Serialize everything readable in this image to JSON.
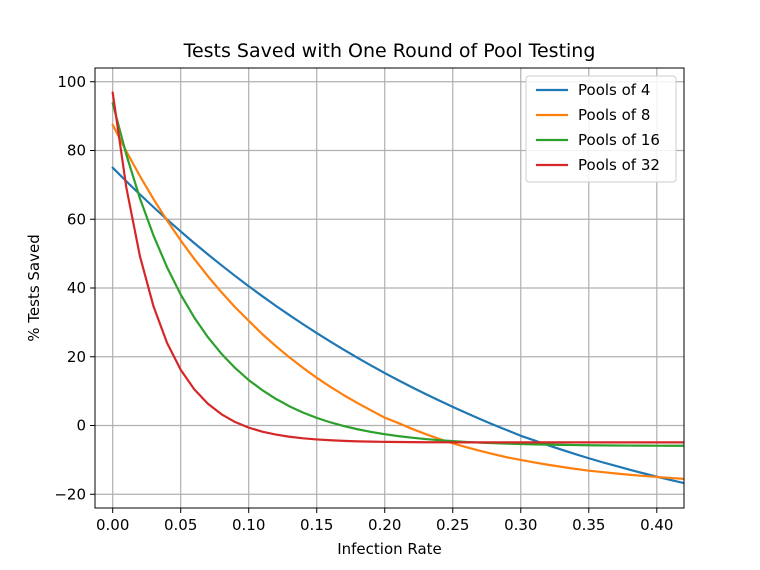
{
  "chart_data": {
    "type": "line",
    "title": "Tests Saved with One Round of Pool Testing",
    "xlabel": "Infection Rate",
    "ylabel": "% Tests Saved",
    "xlim": [
      -0.013,
      0.42
    ],
    "ylim": [
      -24,
      104
    ],
    "xticks": [
      0.0,
      0.05,
      0.1,
      0.15,
      0.2,
      0.25,
      0.3,
      0.35,
      0.4
    ],
    "xtick_labels": [
      "0.00",
      "0.05",
      "0.10",
      "0.15",
      "0.20",
      "0.25",
      "0.30",
      "0.35",
      "0.40"
    ],
    "yticks": [
      -20,
      0,
      20,
      40,
      60,
      80,
      100
    ],
    "ytick_labels": [
      "−20",
      "0",
      "20",
      "40",
      "60",
      "80",
      "100"
    ],
    "grid": true,
    "legend_position": "top-right",
    "x": [
      0.0,
      0.01,
      0.02,
      0.03,
      0.04,
      0.05,
      0.06,
      0.07,
      0.08,
      0.09,
      0.1,
      0.11,
      0.12,
      0.13,
      0.14,
      0.15,
      0.16,
      0.17,
      0.18,
      0.19,
      0.2,
      0.21,
      0.22,
      0.23,
      0.24,
      0.25,
      0.26,
      0.27,
      0.28,
      0.29,
      0.3,
      0.31,
      0.32,
      0.33,
      0.34,
      0.35,
      0.36,
      0.37,
      0.38,
      0.39,
      0.4,
      0.41,
      0.42
    ],
    "series": [
      {
        "name": "Pools of 4",
        "color": "#1f77b4",
        "values": [
          75.0,
          71.06,
          67.24,
          63.53,
          59.92,
          56.45,
          53.06,
          49.78,
          46.6,
          43.51,
          40.52,
          37.62,
          34.81,
          32.09,
          29.45,
          26.89,
          24.42,
          22.02,
          19.7,
          17.45,
          15.26,
          13.17,
          11.14,
          9.17,
          7.26,
          5.41,
          3.63,
          1.9,
          0.23,
          -1.37,
          -2.99,
          -4.34,
          -5.74,
          -7.03,
          -8.3,
          -9.53,
          -10.69,
          -11.78,
          -12.85,
          -13.89,
          -14.88,
          -15.84,
          -16.75
        ]
      },
      {
        "name": "Pools of 8",
        "color": "#ff7f0e",
        "values": [
          87.5,
          79.77,
          72.58,
          65.88,
          59.64,
          53.84,
          48.45,
          43.42,
          38.75,
          34.41,
          30.47,
          26.58,
          23.07,
          19.8,
          16.75,
          13.9,
          11.25,
          8.8,
          6.52,
          4.39,
          2.28,
          0.71,
          -0.96,
          -2.49,
          -3.91,
          -5.18,
          -6.3,
          -7.37,
          -8.35,
          -9.27,
          -10.01,
          -10.75,
          -11.42,
          -12.04,
          -12.62,
          -13.15,
          -13.55,
          -13.96,
          -14.33,
          -14.67,
          -14.97,
          -15.26,
          -15.52
        ]
      },
      {
        "name": "Pools of 16",
        "color": "#2ca02c",
        "values": [
          93.75,
          78.84,
          66.11,
          55.27,
          46.01,
          38.09,
          31.39,
          25.68,
          20.84,
          16.73,
          13.21,
          10.28,
          7.74,
          5.58,
          3.74,
          2.22,
          0.91,
          -0.17,
          -1.09,
          -1.87,
          -2.53,
          -3.09,
          -3.55,
          -3.95,
          -4.28,
          -4.55,
          -4.78,
          -4.98,
          -5.14,
          -5.28,
          -5.39,
          -5.49,
          -5.57,
          -5.63,
          -5.69,
          -5.74,
          -5.78,
          -5.81,
          -5.84,
          -5.86,
          -5.88,
          -5.89,
          -5.9
        ]
      },
      {
        "name": "Pools of 32",
        "color": "#d62728",
        "values": [
          96.88,
          69.3,
          49.29,
          34.68,
          24.01,
          16.22,
          10.5,
          6.33,
          3.26,
          1.01,
          -0.62,
          -1.79,
          -2.64,
          -3.27,
          -3.72,
          -4.05,
          -4.3,
          -4.48,
          -4.61,
          -4.7,
          -4.76,
          -4.81,
          -4.84,
          -4.87,
          -4.88,
          -4.89,
          -4.9,
          -4.91,
          -4.91,
          -4.91,
          -4.92,
          -4.92,
          -4.92,
          -4.92,
          -4.92,
          -4.92,
          -4.92,
          -4.92,
          -4.92,
          -4.92,
          -4.92,
          -4.92,
          -4.92
        ]
      }
    ]
  }
}
